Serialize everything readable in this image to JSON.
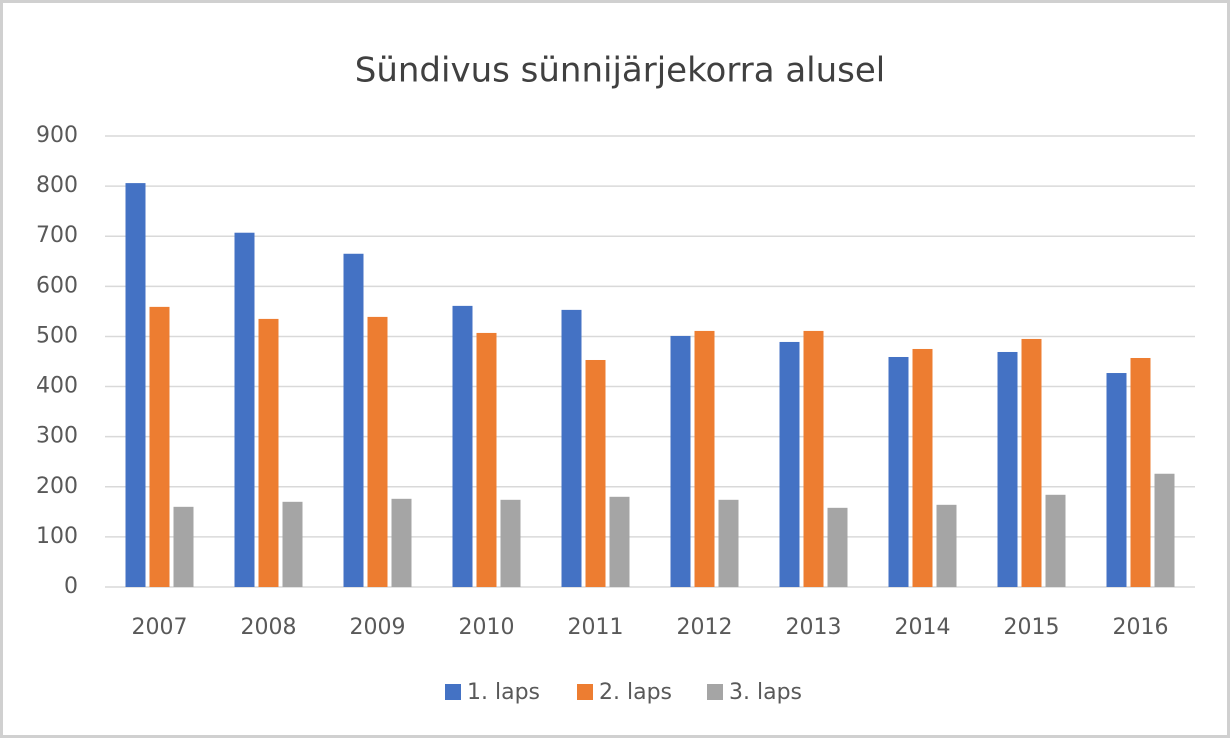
{
  "chart_data": {
    "type": "bar",
    "title": "Sündivus sünnijärjekorra alusel",
    "categories": [
      "2007",
      "2008",
      "2009",
      "2010",
      "2011",
      "2012",
      "2013",
      "2014",
      "2015",
      "2016"
    ],
    "series": [
      {
        "name": "1. laps",
        "color": "#4472c4",
        "values": [
          806,
          707,
          665,
          561,
          553,
          501,
          489,
          459,
          469,
          427
        ]
      },
      {
        "name": "2. laps",
        "color": "#ed7d31",
        "values": [
          559,
          535,
          539,
          507,
          453,
          511,
          511,
          475,
          495,
          457
        ]
      },
      {
        "name": "3. laps",
        "color": "#a5a5a5",
        "values": [
          160,
          170,
          176,
          174,
          180,
          174,
          158,
          164,
          184,
          226
        ]
      }
    ],
    "ylim": [
      0,
      900
    ],
    "yticks": [
      0,
      100,
      200,
      300,
      400,
      500,
      600,
      700,
      800,
      900
    ],
    "grid": true,
    "legend": "bottom"
  }
}
